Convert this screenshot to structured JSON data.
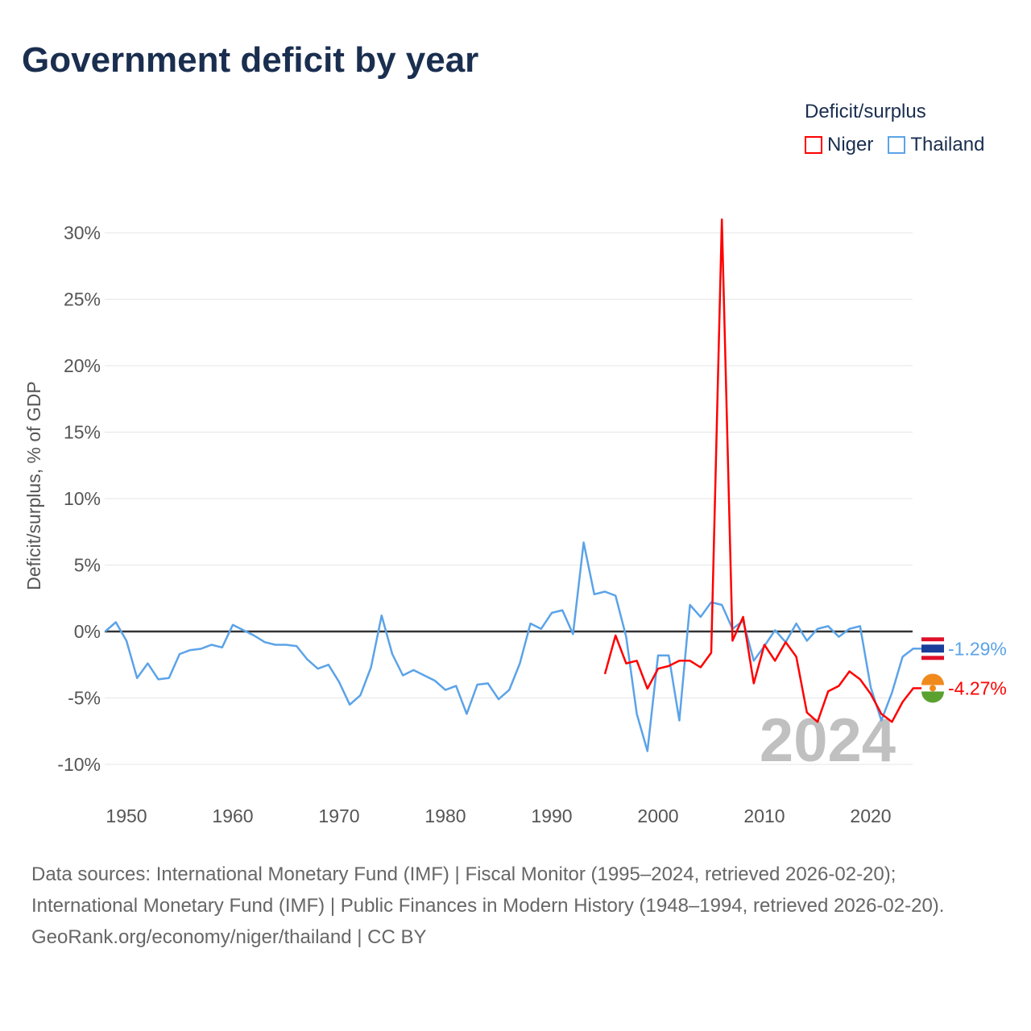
{
  "title": "Government deficit by year",
  "legend": {
    "title": "Deficit/surplus",
    "items": [
      {
        "label": "Niger",
        "color": "#ff0000"
      },
      {
        "label": "Thailand",
        "color": "#5ba3e8"
      }
    ]
  },
  "footer": {
    "sources": "Data sources: International Monetary Fund (IMF) | Fiscal Monitor (1995–2024, retrieved 2026-02-20); International Monetary Fund (IMF) | Public Finances in Modern History (1948–1994, retrieved 2026-02-20).",
    "credit": "GeoRank.org/economy/niger/thailand | CC BY"
  },
  "chart_data": {
    "type": "line",
    "ylabel": "Deficit/surplus, % of GDP",
    "xlim": [
      1948,
      2024
    ],
    "ylim": [
      -12,
      31
    ],
    "xticks": [
      1950,
      1960,
      1970,
      1980,
      1990,
      2000,
      2010,
      2020
    ],
    "yticks": [
      -10,
      -5,
      0,
      5,
      10,
      15,
      20,
      25,
      30
    ],
    "ytick_labels": [
      "-10%",
      "-5%",
      "0%",
      "5%",
      "10%",
      "15%",
      "20%",
      "25%",
      "30%"
    ],
    "year_watermark": "2024",
    "series": [
      {
        "name": "Thailand",
        "color": "#5ba3e8",
        "start": 1948,
        "end_label": "-1.29%",
        "values": [
          0,
          0.7,
          -0.7,
          -3.5,
          -2.4,
          -3.6,
          -3.5,
          -1.7,
          -1.4,
          -1.3,
          -1.0,
          -1.2,
          0.5,
          0.1,
          -0.3,
          -0.8,
          -1.0,
          -1.0,
          -1.1,
          -2.1,
          -2.8,
          -2.5,
          -3.8,
          -5.5,
          -4.8,
          -2.7,
          1.2,
          -1.7,
          -3.3,
          -2.9,
          -3.3,
          -3.7,
          -4.4,
          -4.1,
          -6.2,
          -4.0,
          -3.9,
          -5.1,
          -4.4,
          -2.4,
          0.6,
          0.2,
          1.4,
          1.6,
          -0.2,
          6.7,
          2.8,
          3.0,
          2.7,
          -0.4,
          -6.2,
          -9.0,
          -1.8,
          -1.8,
          -6.7,
          2.0,
          1.1,
          2.2,
          2.0,
          0.2,
          0.8,
          -2.2,
          -1.1,
          0.1,
          -0.8,
          0.6,
          -0.7,
          0.2,
          0.4,
          -0.4,
          0.2,
          0.4,
          -4.2,
          -6.7,
          -4.6,
          -1.9,
          -1.29
        ]
      },
      {
        "name": "Niger",
        "color": "#ff0000",
        "start": 1995,
        "end_label": "-4.27%",
        "values": [
          -3.2,
          -0.3,
          -2.4,
          -2.2,
          -4.3,
          -2.8,
          -2.6,
          -2.2,
          -2.2,
          -2.7,
          -1.6,
          31.0,
          -0.7,
          1.1,
          -3.9,
          -1.0,
          -2.2,
          -0.8,
          -1.9,
          -6.1,
          -6.8,
          -4.5,
          -4.1,
          -3.0,
          -3.6,
          -4.7,
          -6.2,
          -6.8,
          -5.3,
          -4.27
        ]
      }
    ]
  }
}
